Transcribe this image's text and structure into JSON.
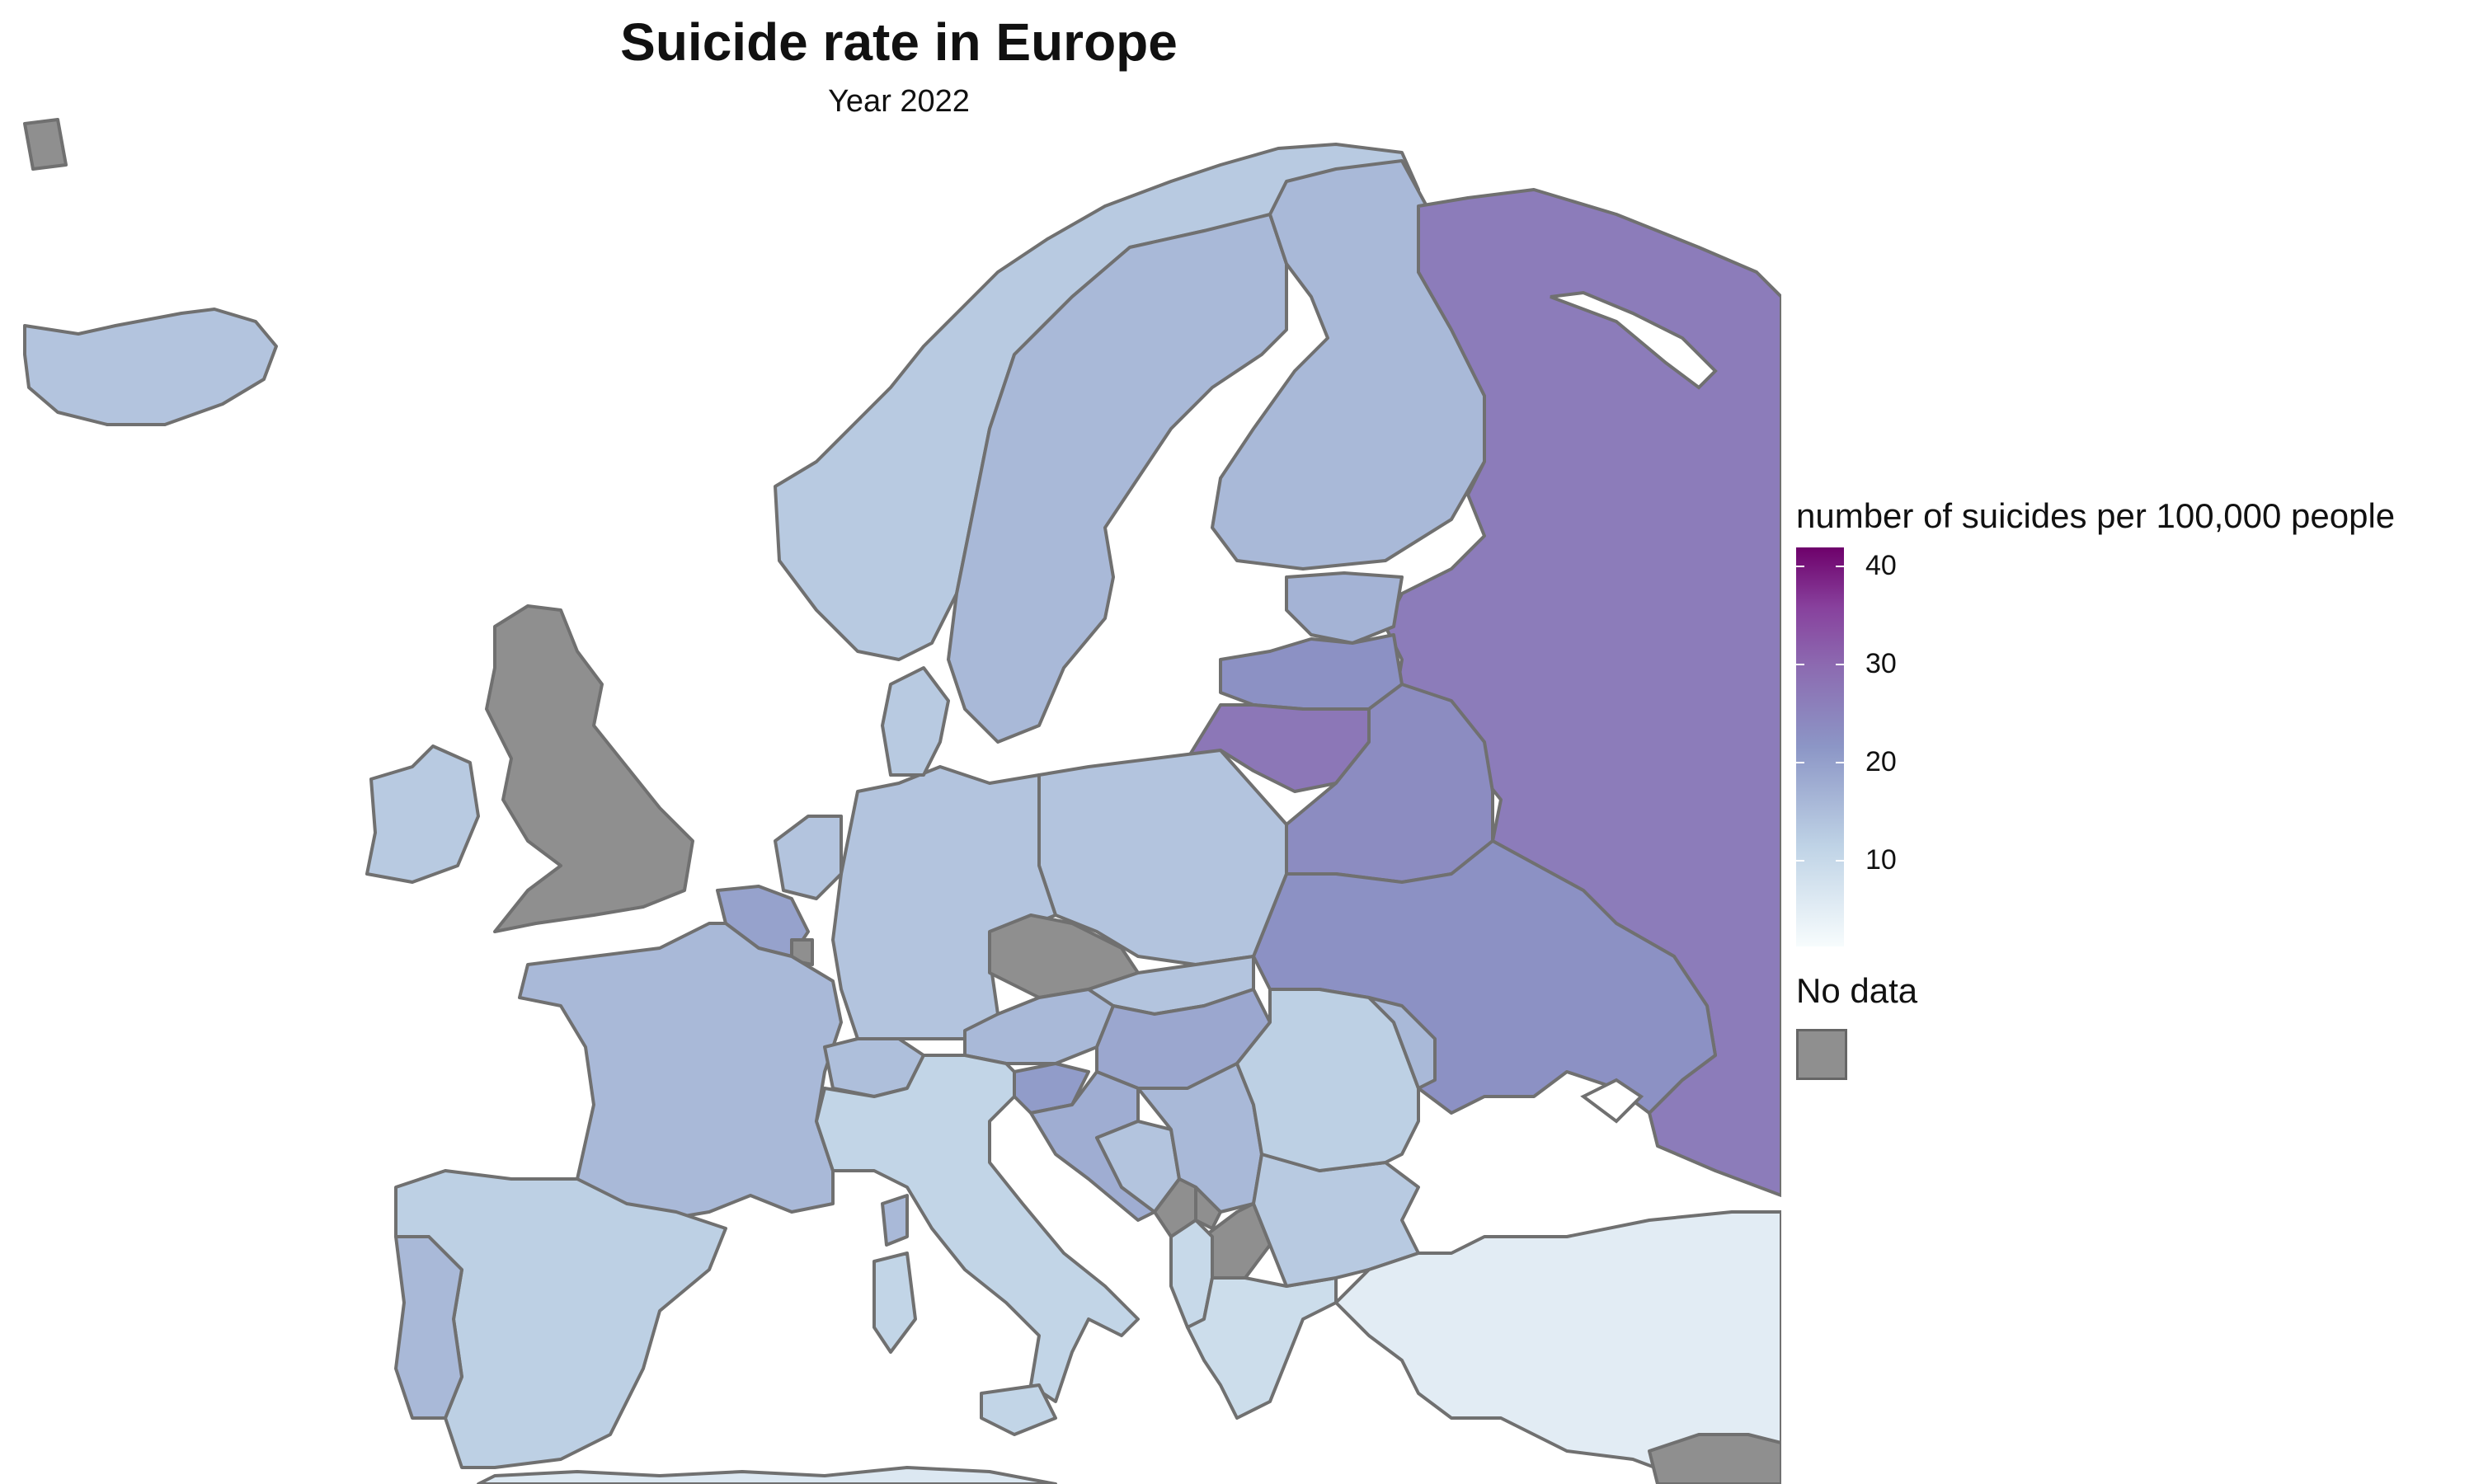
{
  "title": "Suicide rate in Europe",
  "subtitle": "Year 2022",
  "legend": {
    "title": "number of suicides per 100,000 people",
    "ticks": [
      "10",
      "20",
      "30",
      "40"
    ],
    "scale_min": 0,
    "scale_max": 42,
    "gradient_colors": [
      "#f7fcfd",
      "#bfd3e6",
      "#8c96c6",
      "#8c6bb1",
      "#88419d",
      "#6e016b"
    ],
    "nodata_label": "No data",
    "nodata_color": "#8f8f8f"
  },
  "map_data": {
    "regions": [
      {
        "name": "Iceland",
        "rate": 13
      },
      {
        "name": "Ireland",
        "rate": 12
      },
      {
        "name": "United Kingdom",
        "rate": null
      },
      {
        "name": "Norway",
        "rate": 12
      },
      {
        "name": "Sweden",
        "rate": 15
      },
      {
        "name": "Finland",
        "rate": 15
      },
      {
        "name": "Russia",
        "rate": 26
      },
      {
        "name": "Estonia",
        "rate": 16
      },
      {
        "name": "Latvia",
        "rate": 22
      },
      {
        "name": "Lithuania",
        "rate": 27
      },
      {
        "name": "Belarus",
        "rate": 23
      },
      {
        "name": "Ukraine",
        "rate": 22
      },
      {
        "name": "Poland",
        "rate": 13
      },
      {
        "name": "Germany",
        "rate": 13
      },
      {
        "name": "Denmark",
        "rate": 12
      },
      {
        "name": "Netherlands",
        "rate": 13
      },
      {
        "name": "Belgium",
        "rate": 19
      },
      {
        "name": "Luxembourg",
        "rate": null
      },
      {
        "name": "France",
        "rate": 15
      },
      {
        "name": "Switzerland",
        "rate": 14
      },
      {
        "name": "Czech Republic",
        "rate": null
      },
      {
        "name": "Austria",
        "rate": 15
      },
      {
        "name": "Slovakia",
        "rate": 13
      },
      {
        "name": "Hungary",
        "rate": 18
      },
      {
        "name": "Slovenia",
        "rate": 20
      },
      {
        "name": "Croatia",
        "rate": 17
      },
      {
        "name": "Bosnia and Herzegovina",
        "rate": 13
      },
      {
        "name": "Serbia",
        "rate": 15
      },
      {
        "name": "Montenegro",
        "rate": null
      },
      {
        "name": "Kosovo",
        "rate": null
      },
      {
        "name": "North Macedonia",
        "rate": null
      },
      {
        "name": "Albania",
        "rate": 9
      },
      {
        "name": "Greece",
        "rate": 8
      },
      {
        "name": "Bulgaria",
        "rate": 12
      },
      {
        "name": "Romania",
        "rate": 11
      },
      {
        "name": "Moldova",
        "rate": 15
      },
      {
        "name": "Italy",
        "rate": 10
      },
      {
        "name": "Spain",
        "rate": 11
      },
      {
        "name": "Portugal",
        "rate": 15
      },
      {
        "name": "Turkey",
        "rate": 4
      },
      {
        "name": "Cyprus",
        "rate": null
      },
      {
        "name": "North Africa",
        "rate": 5
      }
    ]
  }
}
